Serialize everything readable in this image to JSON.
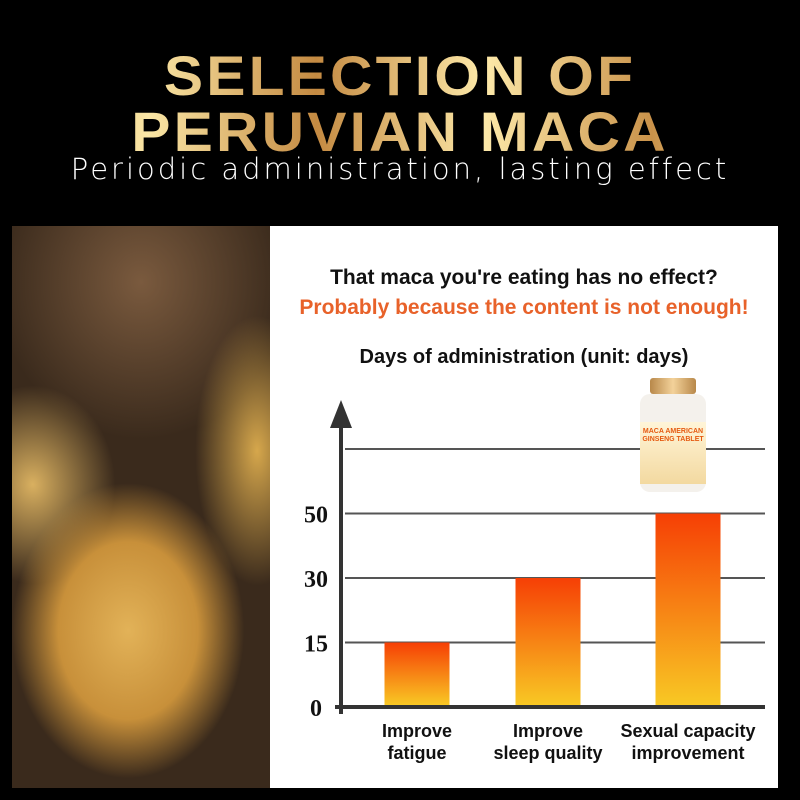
{
  "header": {
    "title_line1": "SELECTION OF",
    "title_line2": "PERUVIAN MACA",
    "subtitle": "Periodic administration, lasting effect"
  },
  "panel": {
    "question": "That maca you're eating has no effect?",
    "answer": "Probably because the content is not enough!",
    "accent_color": "#e8622a"
  },
  "product": {
    "label": "MACA AMERICAN GINSENG TABLET"
  },
  "chart_data": {
    "type": "bar",
    "title": "Days of administration (unit: days)",
    "categories": [
      [
        "Improve",
        "fatigue"
      ],
      [
        "Improve",
        "sleep quality"
      ],
      [
        "Sexual capacity",
        "improvement"
      ]
    ],
    "values": [
      15,
      30,
      50
    ],
    "yticks": [
      "0",
      "15",
      "30",
      "50"
    ],
    "ylabel": "",
    "xlabel": "",
    "grid": true,
    "bar_gradient": [
      "#f63f05",
      "#f8c824"
    ]
  }
}
